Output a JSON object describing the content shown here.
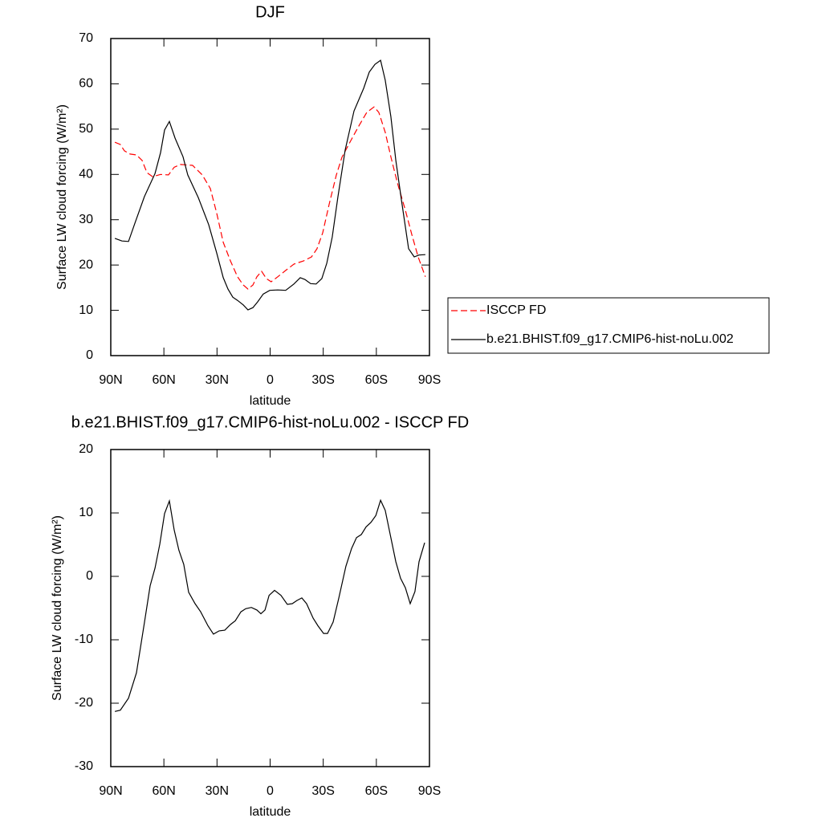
{
  "chart_data": [
    {
      "type": "line",
      "title": "DJF",
      "xlabel": "latitude",
      "ylabel": "Surface LW cloud forcing (W/m²)",
      "xlim": [
        90,
        -90
      ],
      "xticks": [
        {
          "value": 90,
          "label": "90N"
        },
        {
          "value": 60,
          "label": "60N"
        },
        {
          "value": 30,
          "label": "30N"
        },
        0,
        {
          "value": -30,
          "label": "30S"
        },
        {
          "value": -60,
          "label": "60S"
        },
        {
          "value": -90,
          "label": "90S"
        }
      ],
      "ylim": [
        0,
        70
      ],
      "yticks": [
        0,
        10,
        20,
        30,
        40,
        50,
        60,
        70
      ],
      "legend": "right",
      "series": [
        {
          "name": "ISCCP FD",
          "color": "#ff0000",
          "line_style": "dashed",
          "x": [
            87.7,
            84.6,
            82.3,
            79.1,
            75.5,
            72.3,
            69.6,
            66.4,
            61.9,
            57.4,
            54.2,
            50.6,
            43.8,
            38.3,
            33.8,
            30.2,
            26.5,
            22.4,
            18.4,
            15.2,
            12.5,
            9.7,
            7.5,
            4.8,
            2.1,
            -0.6,
            -4.3,
            -8.8,
            -13.4,
            -18.8,
            -23.4,
            -26.5,
            -29.7,
            -33.3,
            -37.4,
            -40.6,
            -45.6,
            -50.1,
            -54.6,
            -58.7,
            -61.4,
            -65,
            -68.2,
            -71.9,
            -76.4,
            -80,
            -83.6,
            -87.7
          ],
          "values": [
            47.1,
            46.6,
            45.2,
            44.5,
            44.3,
            43.1,
            40.4,
            39.5,
            40,
            39.9,
            41.6,
            42.2,
            42,
            39.9,
            36.9,
            31.5,
            25,
            20.9,
            17.4,
            15.6,
            14.7,
            15.6,
            17.4,
            18.6,
            17,
            16.3,
            17.4,
            18.8,
            20.2,
            20.9,
            21.8,
            23.6,
            27.1,
            33.3,
            39.9,
            43.8,
            47.5,
            50.7,
            53.7,
            54.9,
            53.7,
            49.3,
            43.9,
            38.1,
            32.1,
            26.8,
            21.8,
            17.4
          ]
        },
        {
          "name": "b.e21.BHIST.f09_g17.CMIP6-hist-noLu.002",
          "color": "#000000",
          "line_style": "solid",
          "x": [
            87.7,
            83.7,
            80,
            76.4,
            71,
            65,
            61.9,
            59.6,
            56.9,
            53.7,
            49.2,
            46.5,
            40.6,
            34.7,
            30.2,
            26.5,
            23.8,
            21.1,
            18.4,
            15.2,
            12.5,
            9.7,
            7,
            3.9,
            0.2,
            -4.3,
            -8.8,
            -13.4,
            -17,
            -19.7,
            -22.9,
            -26,
            -29.2,
            -32,
            -35.1,
            -38.3,
            -42.4,
            -47.4,
            -52.8,
            -56,
            -59.2,
            -62.4,
            -65,
            -68.2,
            -71,
            -74.2,
            -78.2,
            -81.4,
            -84.1,
            -87.7
          ],
          "values": [
            25.9,
            25.3,
            25.2,
            29.2,
            35.1,
            40.2,
            44.8,
            49.8,
            51.7,
            48,
            43.9,
            39.9,
            34.9,
            28.9,
            22.7,
            17.2,
            14.7,
            12.9,
            12.2,
            11.2,
            10.1,
            10.6,
            11.9,
            13.6,
            14.4,
            14.5,
            14.4,
            15.8,
            17.2,
            16.8,
            15.9,
            15.8,
            17,
            20.4,
            26.2,
            35.1,
            45.4,
            54,
            59,
            62.6,
            64.3,
            65.2,
            60.8,
            52.8,
            43.1,
            34.2,
            23.6,
            21.8,
            22.2,
            22.3
          ]
        }
      ]
    },
    {
      "type": "line",
      "title": "b.e21.BHIST.f09_g17.CMIP6-hist-noLu.002 - ISCCP FD",
      "xlabel": "latitude",
      "ylabel": "Surface LW cloud forcing (W/m²)",
      "xlim": [
        90,
        -90
      ],
      "xticks": [
        {
          "value": 90,
          "label": "90N"
        },
        {
          "value": 60,
          "label": "60N"
        },
        {
          "value": 30,
          "label": "30N"
        },
        0,
        {
          "value": -30,
          "label": "30S"
        },
        {
          "value": -60,
          "label": "60S"
        },
        {
          "value": -90,
          "label": "90S"
        }
      ],
      "ylim": [
        -30,
        20
      ],
      "yticks": [
        -30,
        -20,
        -10,
        0,
        10,
        20
      ],
      "color": "#000000",
      "x": [
        87.7,
        84.6,
        80,
        75.5,
        71,
        67.8,
        65,
        62.3,
        59.6,
        56.9,
        54.2,
        51.5,
        48.8,
        46,
        42.4,
        39.2,
        35.1,
        32,
        28.8,
        25.6,
        22.4,
        19.7,
        16.5,
        13.8,
        10.6,
        7.5,
        5.2,
        2.9,
        0.6,
        -2.5,
        -6.1,
        -9.7,
        -12.5,
        -15.2,
        -17.9,
        -20.6,
        -24.3,
        -27,
        -30.2,
        -32.4,
        -35.6,
        -38.8,
        -42.8,
        -46,
        -48.8,
        -51.5,
        -54.2,
        -56.9,
        -59.7,
        -62.4,
        -65,
        -68.2,
        -71,
        -73.7,
        -76.4,
        -79.1,
        -81.8,
        -84.1,
        -87.3
      ],
      "values": [
        -21.3,
        -21.1,
        -19.2,
        -15.2,
        -7.3,
        -1.5,
        1.3,
        5.1,
        9.9,
        11.9,
        7.3,
        4.1,
        1.9,
        -2.5,
        -4.3,
        -5.6,
        -7.8,
        -9.1,
        -8.6,
        -8.5,
        -7.6,
        -7,
        -5.6,
        -5.1,
        -4.9,
        -5.3,
        -5.9,
        -5.3,
        -3,
        -2.2,
        -3,
        -4.4,
        -4.3,
        -3.8,
        -3.4,
        -4.3,
        -6.6,
        -7.8,
        -9,
        -9,
        -7.2,
        -3.4,
        1.6,
        4.4,
        6.1,
        6.6,
        7.8,
        8.5,
        9.6,
        12,
        10.4,
        6.1,
        2.3,
        -0.3,
        -1.8,
        -4.3,
        -2.4,
        2.3,
        5.3
      ]
    }
  ]
}
